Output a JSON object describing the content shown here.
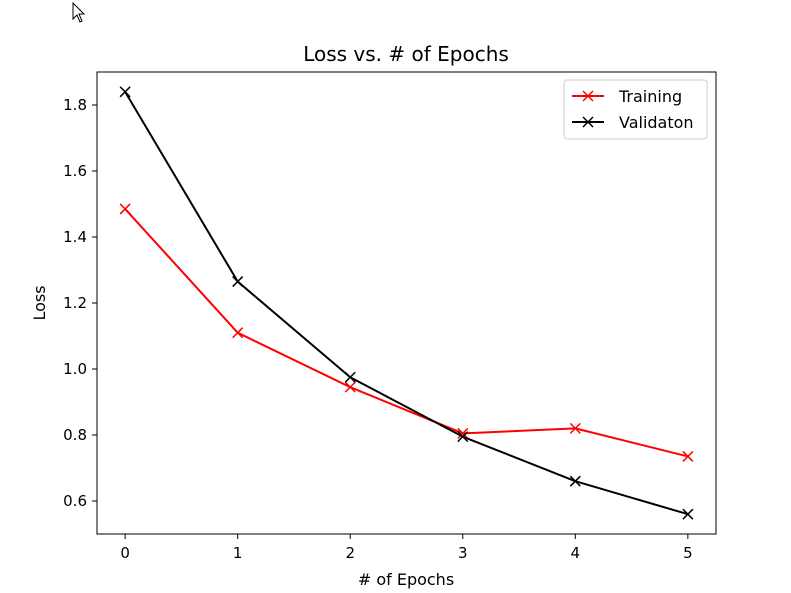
{
  "chart_data": {
    "type": "line",
    "title": "Loss vs. # of Epochs",
    "xlabel": "# of Epochs",
    "ylabel": "Loss",
    "x": [
      0,
      1,
      2,
      3,
      4,
      5
    ],
    "xlim": [
      -0.25,
      5.25
    ],
    "ylim": [
      0.5,
      1.9
    ],
    "xticks": [
      "0",
      "1",
      "2",
      "3",
      "4",
      "5"
    ],
    "yticks": [
      "0.6",
      "0.8",
      "1.0",
      "1.2",
      "1.4",
      "1.6",
      "1.8"
    ],
    "grid": false,
    "legend_position": "top-right",
    "marker": "x",
    "series": [
      {
        "name": "Training",
        "color": "#ff0000",
        "values": [
          1.485,
          1.11,
          0.945,
          0.805,
          0.82,
          0.735
        ]
      },
      {
        "name": "Validaton",
        "color": "#000000",
        "values": [
          1.84,
          1.265,
          0.975,
          0.795,
          0.66,
          0.56
        ]
      }
    ]
  },
  "cursor": {
    "icon": "mouse-pointer-icon"
  }
}
